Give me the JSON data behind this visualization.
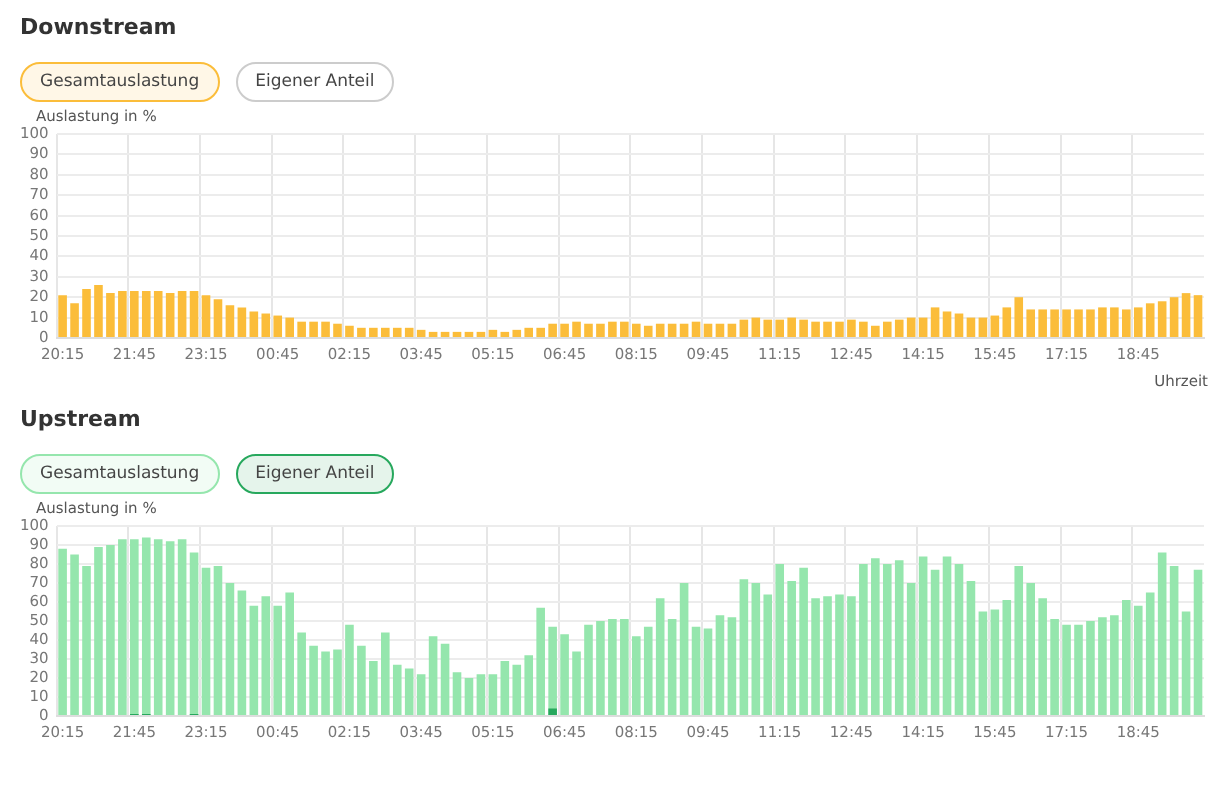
{
  "chart_data": [
    {
      "type": "bar",
      "title": "Downstream",
      "ylabel": "Auslastung in %",
      "xlabel": "Uhrzeit",
      "categories": [
        "20:15",
        null,
        null,
        null,
        null,
        null,
        "21:45",
        null,
        null,
        null,
        null,
        null,
        "23:15",
        null,
        null,
        null,
        null,
        null,
        "00:45",
        null,
        null,
        null,
        null,
        null,
        "02:15",
        null,
        null,
        null,
        null,
        null,
        "03:45",
        null,
        null,
        null,
        null,
        null,
        "05:15",
        null,
        null,
        null,
        null,
        null,
        "06:45",
        null,
        null,
        null,
        null,
        null,
        "08:15",
        null,
        null,
        null,
        null,
        null,
        "09:45",
        null,
        null,
        null,
        null,
        null,
        "11:15",
        null,
        null,
        null,
        null,
        null,
        "12:45",
        null,
        null,
        null,
        null,
        null,
        "14:15",
        null,
        null,
        null,
        null,
        null,
        "15:45",
        null,
        null,
        null,
        null,
        null,
        "17:15",
        null,
        null,
        null,
        null,
        null,
        "18:45",
        null,
        null,
        null,
        null,
        null
      ],
      "series": [
        {
          "name": "Gesamtauslastung",
          "color": "#fbbd3a",
          "values": [
            21,
            17,
            24,
            26,
            22,
            23,
            23,
            23,
            23,
            22,
            23,
            23,
            21,
            19,
            16,
            15,
            13,
            12,
            11,
            10,
            8,
            8,
            8,
            7,
            6,
            5,
            5,
            5,
            5,
            5,
            4,
            3,
            3,
            3,
            3,
            3,
            4,
            3,
            4,
            5,
            5,
            7,
            7,
            8,
            7,
            7,
            8,
            8,
            7,
            6,
            7,
            7,
            7,
            8,
            7,
            7,
            7,
            9,
            10,
            9,
            9,
            10,
            9,
            8,
            8,
            8,
            9,
            8,
            6,
            8,
            9,
            10,
            10,
            15,
            13,
            12,
            10,
            10,
            11,
            15,
            20,
            14,
            14,
            14,
            14,
            14,
            14,
            15,
            15,
            14,
            15,
            17,
            18,
            20,
            22,
            21
          ]
        },
        {
          "name": "Eigener Anteil",
          "values": [
            0,
            0,
            0,
            0,
            0,
            0,
            0,
            0,
            0,
            0,
            0,
            0,
            0,
            0,
            0,
            0,
            0,
            0,
            0,
            0,
            0,
            0,
            0,
            0,
            0,
            0,
            0,
            0,
            0,
            0,
            0,
            0,
            0,
            0,
            0,
            0,
            0,
            0,
            0,
            0,
            0,
            0,
            0,
            0,
            0,
            0,
            0,
            0,
            0,
            0,
            0,
            0,
            0,
            0,
            0,
            0,
            0,
            0,
            0,
            0,
            0,
            0,
            0,
            0,
            0,
            0,
            0,
            0,
            0,
            0,
            0,
            0,
            0,
            0,
            0,
            0,
            0,
            0,
            0,
            0,
            0,
            0,
            0,
            0,
            0,
            0,
            0,
            0,
            0,
            0,
            0,
            0,
            0,
            0,
            0,
            0
          ]
        }
      ],
      "ylim": [
        0,
        100
      ],
      "yticks": [
        0,
        10,
        20,
        30,
        40,
        50,
        60,
        70,
        80,
        90,
        100
      ],
      "grid": true,
      "legend": "top left"
    },
    {
      "type": "bar",
      "title": "Upstream",
      "ylabel": "Auslastung in %",
      "categories": [
        "20:15",
        null,
        null,
        null,
        null,
        null,
        "21:45",
        null,
        null,
        null,
        null,
        null,
        "23:15",
        null,
        null,
        null,
        null,
        null,
        "00:45",
        null,
        null,
        null,
        null,
        null,
        "02:15",
        null,
        null,
        null,
        null,
        null,
        "03:45",
        null,
        null,
        null,
        null,
        null,
        "05:15",
        null,
        null,
        null,
        null,
        null,
        "06:45",
        null,
        null,
        null,
        null,
        null,
        "08:15",
        null,
        null,
        null,
        null,
        null,
        "09:45",
        null,
        null,
        null,
        null,
        null,
        "11:15",
        null,
        null,
        null,
        null,
        null,
        "12:45",
        null,
        null,
        null,
        null,
        null,
        "14:15",
        null,
        null,
        null,
        null,
        null,
        "15:45",
        null,
        null,
        null,
        null,
        null,
        "17:15",
        null,
        null,
        null,
        null,
        null,
        "18:45",
        null,
        null,
        null,
        null,
        null
      ],
      "series": [
        {
          "name": "Gesamtauslastung",
          "color": "#95e6ad",
          "values": [
            88,
            85,
            79,
            89,
            90,
            93,
            93,
            94,
            93,
            92,
            93,
            86,
            78,
            79,
            70,
            66,
            58,
            63,
            58,
            65,
            44,
            37,
            34,
            35,
            48,
            37,
            29,
            44,
            27,
            25,
            22,
            42,
            38,
            23,
            20,
            22,
            22,
            29,
            27,
            32,
            57,
            47,
            43,
            34,
            48,
            50,
            51,
            51,
            42,
            47,
            62,
            51,
            70,
            47,
            46,
            53,
            52,
            72,
            70,
            64,
            80,
            71,
            78,
            62,
            63,
            64,
            63,
            80,
            83,
            80,
            82,
            70,
            84,
            77,
            84,
            80,
            71,
            55,
            56,
            61,
            79,
            70,
            62,
            51,
            48,
            48,
            50,
            52,
            53,
            61,
            58,
            65,
            86,
            79,
            55,
            77
          ]
        },
        {
          "name": "Eigener Anteil",
          "color": "#27a85d",
          "values": [
            0,
            0,
            0,
            0,
            0,
            0,
            1,
            1,
            0,
            0,
            0,
            1,
            0,
            0,
            0,
            0,
            0,
            0,
            0,
            0,
            0,
            0,
            0,
            0,
            0,
            0,
            0,
            0,
            0,
            0,
            0,
            0,
            0,
            0,
            0,
            0,
            0,
            0,
            0,
            0,
            0,
            4,
            0,
            0,
            0,
            0,
            0,
            0,
            0,
            0,
            0,
            0,
            0,
            0,
            0,
            0,
            0,
            0,
            0,
            0,
            0,
            0,
            0,
            0,
            0,
            0,
            0,
            0,
            0,
            0,
            0,
            0,
            0,
            0,
            0,
            0,
            0,
            0,
            0,
            0,
            0,
            0,
            0,
            0,
            0,
            0,
            0,
            0,
            0,
            0,
            0,
            0,
            0,
            0,
            0,
            0
          ]
        }
      ],
      "ylim": [
        0,
        100
      ],
      "yticks": [
        0,
        10,
        20,
        30,
        40,
        50,
        60,
        70,
        80,
        90,
        100
      ],
      "grid": true,
      "legend": "top left"
    }
  ]
}
